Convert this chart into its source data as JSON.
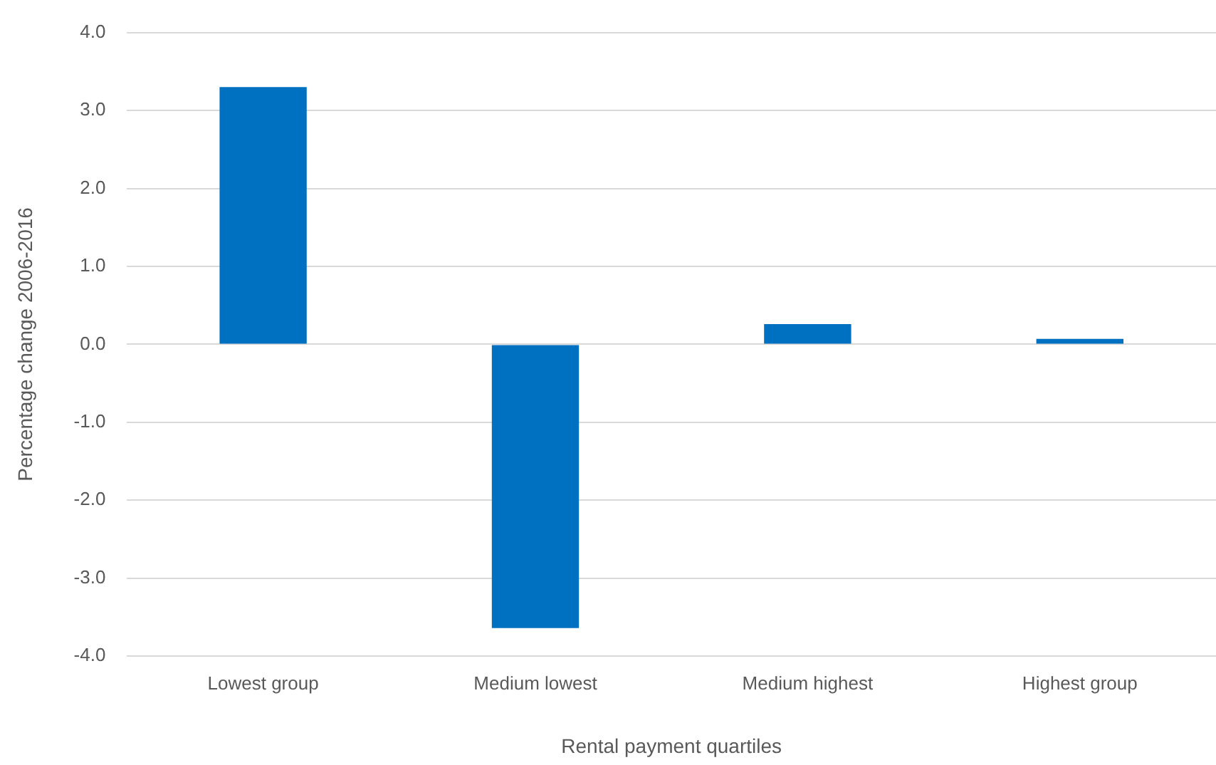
{
  "chart_data": {
    "type": "bar",
    "xlabel": "Rental payment quartiles",
    "ylabel": "Percentage change 2006-2016",
    "categories": [
      "Lowest group",
      "Medium lowest",
      "Medium highest",
      "Highest group"
    ],
    "values": [
      3.3,
      -3.64,
      0.26,
      0.07
    ],
    "color": "#0070c0",
    "ylim": [
      -4,
      4
    ],
    "yticks": [
      {
        "value": -4,
        "label": "-4.0"
      },
      {
        "value": -3,
        "label": "-3.0"
      },
      {
        "value": -2,
        "label": "-2.0"
      },
      {
        "value": -1,
        "label": "-1.0"
      },
      {
        "value": 0,
        "label": "0.0"
      },
      {
        "value": 1,
        "label": "1.0"
      },
      {
        "value": 2,
        "label": "2.0"
      },
      {
        "value": 3,
        "label": "3.0"
      },
      {
        "value": 4,
        "label": "4.0"
      }
    ],
    "grid": "y",
    "legend": false
  }
}
